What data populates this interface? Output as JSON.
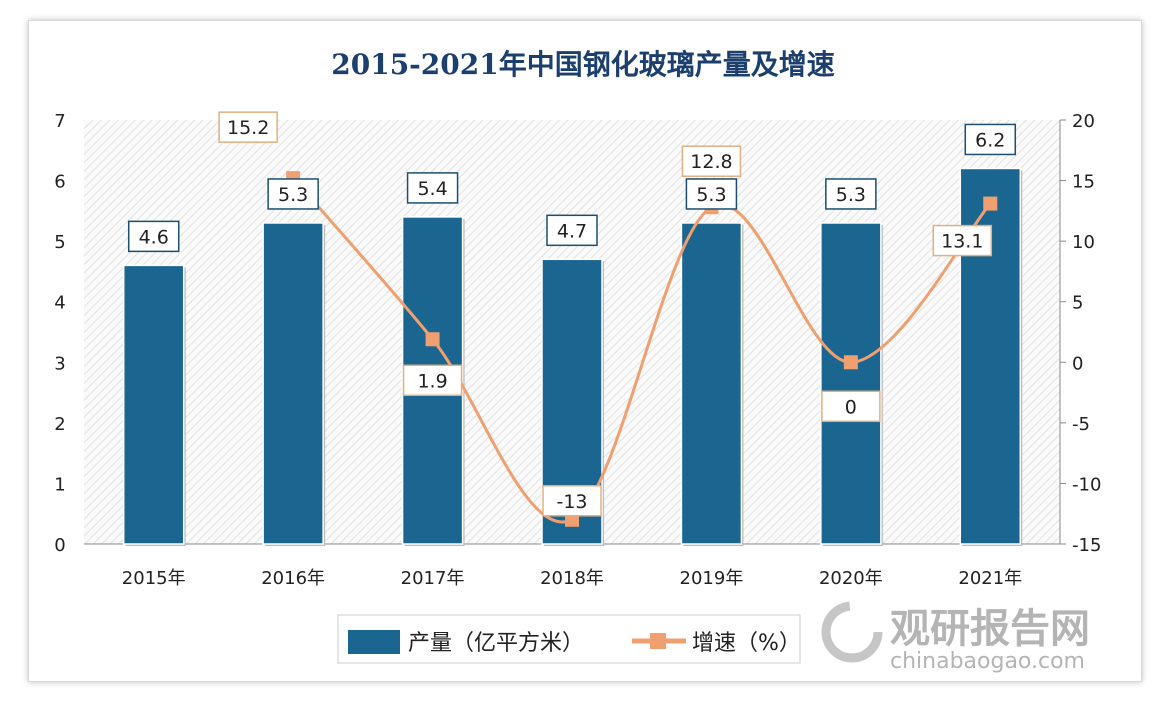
{
  "chart_data": {
    "type": "bar+line",
    "title": "2015-2021年中国钢化玻璃产量及增速",
    "categories": [
      "2015年",
      "2016年",
      "2017年",
      "2018年",
      "2019年",
      "2020年",
      "2021年"
    ],
    "series": [
      {
        "name": "产量（亿平方米）",
        "type": "bar",
        "axis": "left",
        "color": "#1a6690",
        "values": [
          4.6,
          5.3,
          5.4,
          4.7,
          5.3,
          5.3,
          6.2
        ]
      },
      {
        "name": "增速（%）",
        "type": "line",
        "axis": "right",
        "color": "#f0a070",
        "values": [
          null,
          15.2,
          1.9,
          -13,
          12.8,
          0,
          13.1
        ]
      }
    ],
    "y_left": {
      "range": [
        0,
        7
      ],
      "ticks": [
        0,
        1,
        2,
        3,
        4,
        5,
        6,
        7
      ]
    },
    "y_right": {
      "range": [
        -15,
        20
      ],
      "ticks": [
        -15,
        -10,
        -5,
        0,
        5,
        10,
        15,
        20
      ]
    },
    "legend_position": "bottom",
    "grid": false
  },
  "watermark": {
    "name": "观研报告网",
    "url": "chinabaogao.com"
  }
}
